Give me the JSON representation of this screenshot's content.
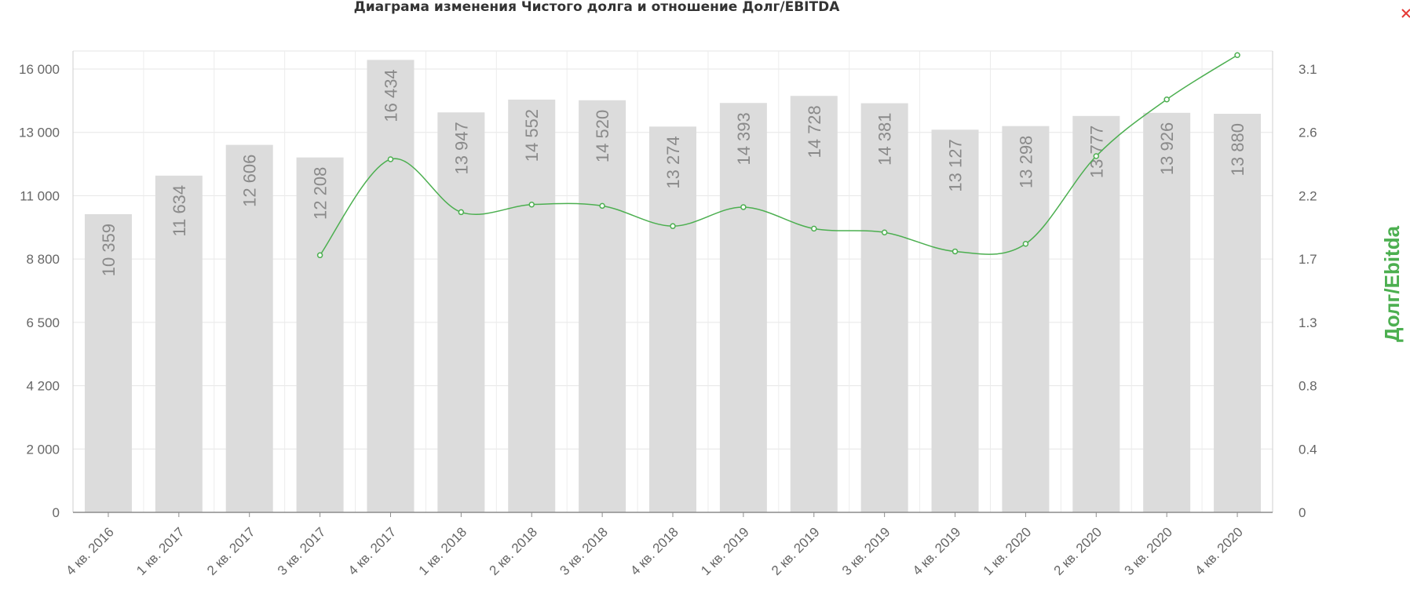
{
  "chart_data": {
    "type": "bar",
    "title": "Диаграма изменения Чистого долга и отношение Долг/EBITDA",
    "categories": [
      "4 кв. 2016",
      "1 кв. 2017",
      "2 кв. 2017",
      "3 кв. 2017",
      "4 кв. 2017",
      "1 кв. 2018",
      "2 кв. 2018",
      "3 кв. 2018",
      "4 кв. 2018",
      "1 кв. 2019",
      "2 кв. 2019",
      "3 кв. 2019",
      "4 кв. 2019",
      "1 кв. 2020",
      "2 кв. 2020",
      "3 кв. 2020",
      "4 кв. 2020"
    ],
    "bar_series": {
      "values": [
        10359,
        11634,
        12606,
        12208,
        16434,
        13947,
        14552,
        14520,
        13274,
        14393,
        14728,
        14381,
        13127,
        13298,
        13777,
        13926,
        13880
      ],
      "labels": [
        "10 359",
        "11 634",
        "12 606",
        "12 208",
        "16 434",
        "13 947",
        "14 552",
        "14 520",
        "13 274",
        "14 393",
        "14 728",
        "14 381",
        "13 127",
        "13 298",
        "13 777",
        "13 926",
        "13 880"
      ],
      "color": "#dcdcdc",
      "label_color": "#8a8a8a"
    },
    "line_series": {
      "values": [
        null,
        null,
        null,
        1.73,
        2.43,
        2.07,
        2.13,
        2.12,
        1.96,
        2.11,
        1.94,
        1.91,
        1.76,
        1.82,
        2.45,
        2.86,
        3.21
      ],
      "color": "#4caf50"
    },
    "y_left": {
      "ticks": [
        0,
        2000,
        4200,
        6500,
        8800,
        11000,
        13000,
        16000
      ],
      "tick_labels": [
        "0",
        "2 000",
        "4 200",
        "6 500",
        "8 800",
        "11 000",
        "13 000",
        "16 000"
      ]
    },
    "y_right": {
      "title": "Долг/Ebitda",
      "ticks": [
        0,
        0.4,
        0.8,
        1.3,
        1.7,
        2.2,
        2.6,
        3.1
      ],
      "tick_labels": [
        "0",
        "0.4",
        "0.8",
        "1.3",
        "1.7",
        "2.2",
        "2.6",
        "3.1"
      ],
      "title_color": "#4caf50"
    },
    "grid": true,
    "legend": "none"
  },
  "controls": {
    "close_icon": "close-icon",
    "close_color": "#e53935"
  }
}
